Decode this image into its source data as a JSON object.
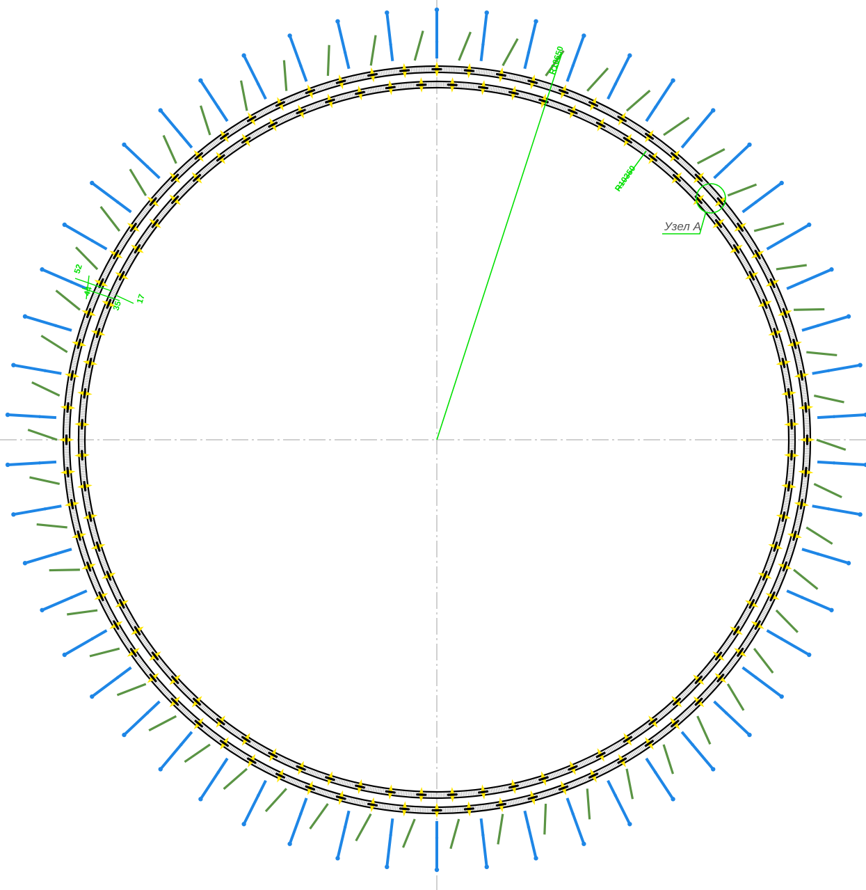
{
  "drawing": {
    "outer_radius_label": "R10650",
    "inner_radius_label": "R10350",
    "node_label": "Узел А",
    "dimensions": [
      "52",
      "44",
      "35",
      "17"
    ]
  },
  "colors": {
    "ring": "#000000",
    "clamp": "#ffe600",
    "green_bar": "#5a9444",
    "blue_bar": "#1e86e6",
    "dimension": "#00e000",
    "axis": "#a0a0a0",
    "label_text": "#555555"
  },
  "counts": {
    "clamps_per_ring": 72,
    "green_bars": 54,
    "blue_bars": 54
  }
}
